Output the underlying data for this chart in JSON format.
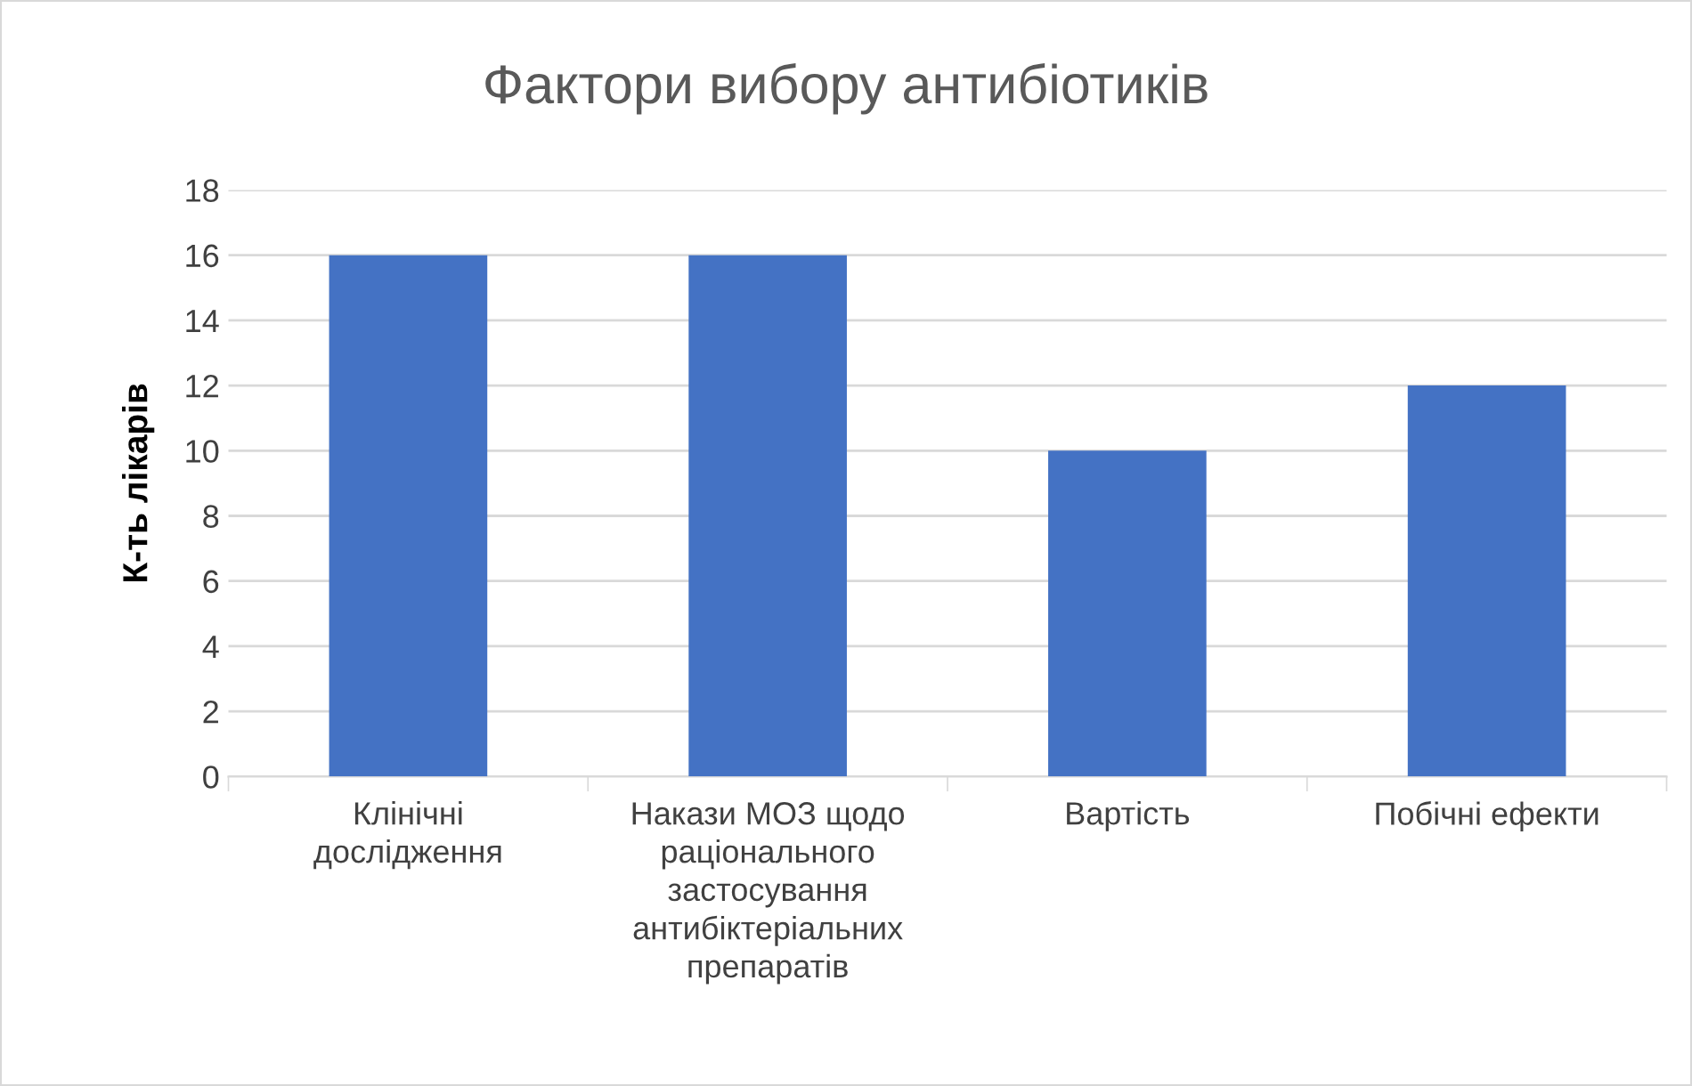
{
  "chart_data": {
    "type": "bar",
    "title": "Фактори вибору антибіотиків",
    "ylabel": "К-ть лікарів",
    "categories": [
      "Клінічні\nдослідження",
      "Накази МОЗ щодо\nраціонального\nзастосування\nантибіктеріальних\nпрепаратів",
      "Вартість",
      "Побічні ефекти"
    ],
    "values": [
      16,
      16,
      10,
      12
    ],
    "color": "#4472c4",
    "ylim": [
      0,
      18
    ],
    "yticks": [
      0,
      2,
      4,
      6,
      8,
      10,
      12,
      14,
      16,
      18
    ],
    "grid": "y",
    "legend": false
  }
}
